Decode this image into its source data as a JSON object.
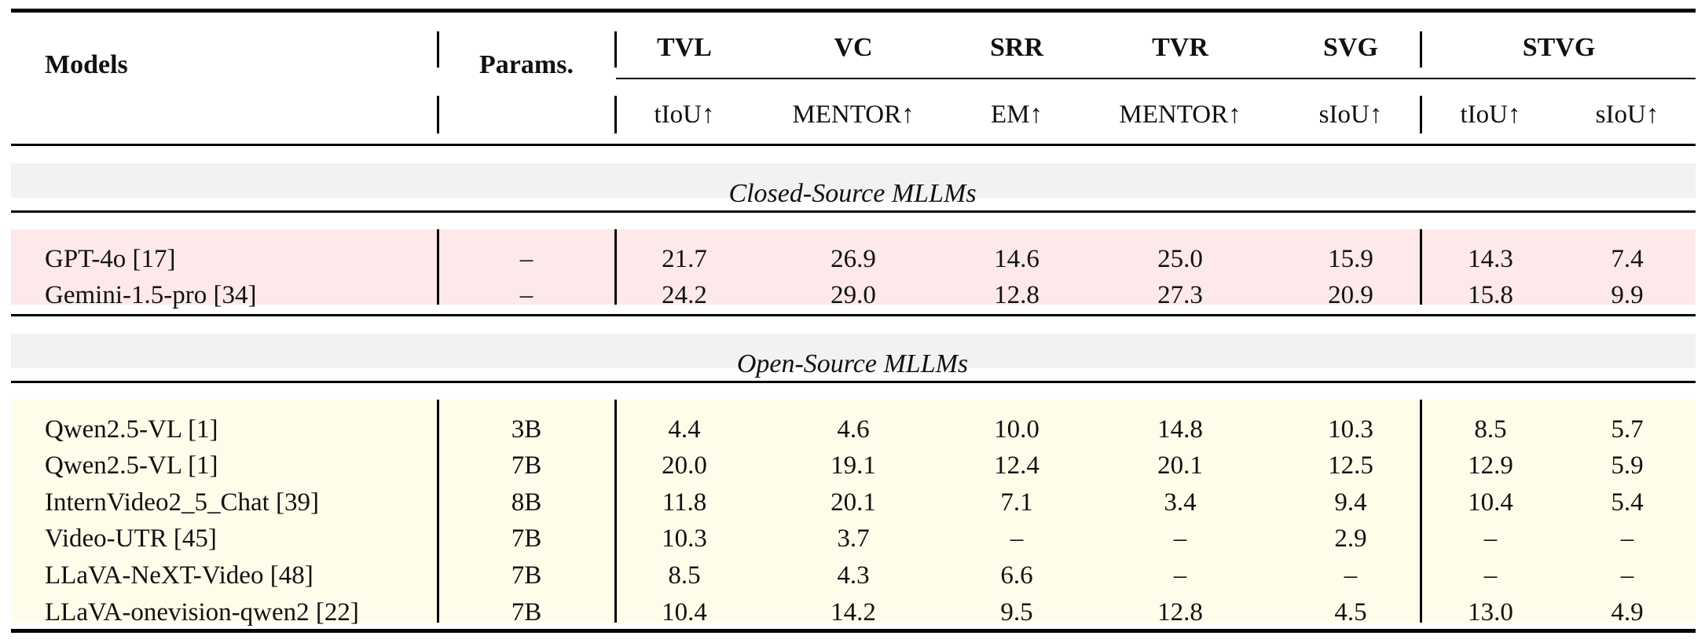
{
  "header": {
    "models": "Models",
    "params": "Params.",
    "tasks": [
      "TVL",
      "VC",
      "SRR",
      "TVR",
      "SVG",
      "STVG"
    ],
    "metrics": [
      "tIoU↑",
      "MENTOR↑",
      "EM↑",
      "MENTOR↑",
      "sIoU↑",
      "tIoU↑",
      "sIoU↑"
    ]
  },
  "colors": {
    "closed_band": "#fde8ea",
    "open_band": "#fffdea",
    "section_band": "#f2f2f2",
    "rule": "#000000"
  },
  "sections": [
    {
      "title": "Closed-Source MLLMs",
      "rows": [
        {
          "model": "GPT-4o [17]",
          "params": "–",
          "values": [
            "21.7",
            "26.9",
            "14.6",
            "25.0",
            "15.9",
            "14.3",
            "7.4"
          ]
        },
        {
          "model": "Gemini-1.5-pro [34]",
          "params": "–",
          "values": [
            "24.2",
            "29.0",
            "12.8",
            "27.3",
            "20.9",
            "15.8",
            "9.9"
          ]
        }
      ]
    },
    {
      "title": "Open-Source MLLMs",
      "rows": [
        {
          "model": "Qwen2.5-VL [1]",
          "params": "3B",
          "values": [
            "4.4",
            "4.6",
            "10.0",
            "14.8",
            "10.3",
            "8.5",
            "5.7"
          ]
        },
        {
          "model": "Qwen2.5-VL [1]",
          "params": "7B",
          "values": [
            "20.0",
            "19.1",
            "12.4",
            "20.1",
            "12.5",
            "12.9",
            "5.9"
          ]
        },
        {
          "model": "InternVideo2_5_Chat [39]",
          "params": "8B",
          "values": [
            "11.8",
            "20.1",
            "7.1",
            "3.4",
            "9.4",
            "10.4",
            "5.4"
          ]
        },
        {
          "model": "Video-UTR [45]",
          "params": "7B",
          "values": [
            "10.3",
            "3.7",
            "–",
            "–",
            "2.9",
            "–",
            "–"
          ]
        },
        {
          "model": "LLaVA-NeXT-Video [48]",
          "params": "7B",
          "values": [
            "8.5",
            "4.3",
            "6.6",
            "–",
            "–",
            "–",
            "–"
          ]
        },
        {
          "model": "LLaVA-onevision-qwen2 [22]",
          "params": "7B",
          "values": [
            "10.4",
            "14.2",
            "9.5",
            "12.8",
            "4.5",
            "13.0",
            "4.9"
          ]
        }
      ]
    }
  ]
}
